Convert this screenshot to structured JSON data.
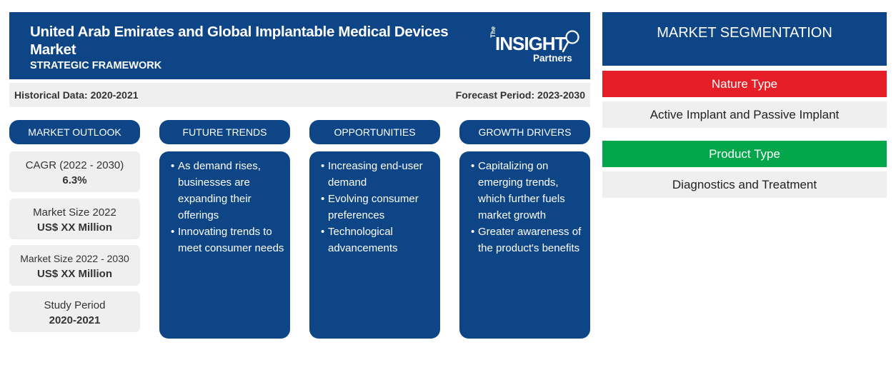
{
  "header": {
    "title": "United Arab Emirates and Global Implantable Medical Devices Market",
    "subtitle": "STRATEGIC FRAMEWORK",
    "logo": {
      "the": "The",
      "word": "INSIGHT",
      "partners": "Partners"
    }
  },
  "period": {
    "historical": "Historical Data: 2020-2021",
    "forecast": "Forecast Period: 2023-2030"
  },
  "columns": {
    "outlook_title": "MARKET OUTLOOK",
    "trends_title": "FUTURE TRENDS",
    "opportunities_title": "OPPORTUNITIES",
    "drivers_title": "GROWTH DRIVERS"
  },
  "outlook": [
    {
      "label": "CAGR (2022 - 2030)",
      "value": "6.3%"
    },
    {
      "label": "Market Size 2022",
      "value": "US$ XX Million"
    },
    {
      "label": "Market Size 2022 - 2030",
      "value": "US$ XX Million"
    },
    {
      "label": "Study Period",
      "value": "2020-2021"
    }
  ],
  "trends": [
    "As demand rises, businesses are expanding their offerings",
    "Innovating trends to meet consumer needs"
  ],
  "opportunities": [
    "Increasing end-user demand",
    "Evolving consumer preferences",
    "Technological advancements"
  ],
  "drivers": [
    "Capitalizing on emerging trends, which further fuels market growth",
    "Greater awareness of the product's benefits"
  ],
  "segmentation": {
    "title": "MARKET SEGMENTATION",
    "groups": [
      {
        "type": "Nature Type",
        "value": "Active Implant and Passive Implant",
        "color": "#e61e28"
      },
      {
        "type": "Product Type",
        "value": "Diagnostics and Treatment",
        "color": "#03a64b"
      }
    ]
  },
  "colors": {
    "primary": "#0d4587",
    "panel": "#efefef"
  }
}
